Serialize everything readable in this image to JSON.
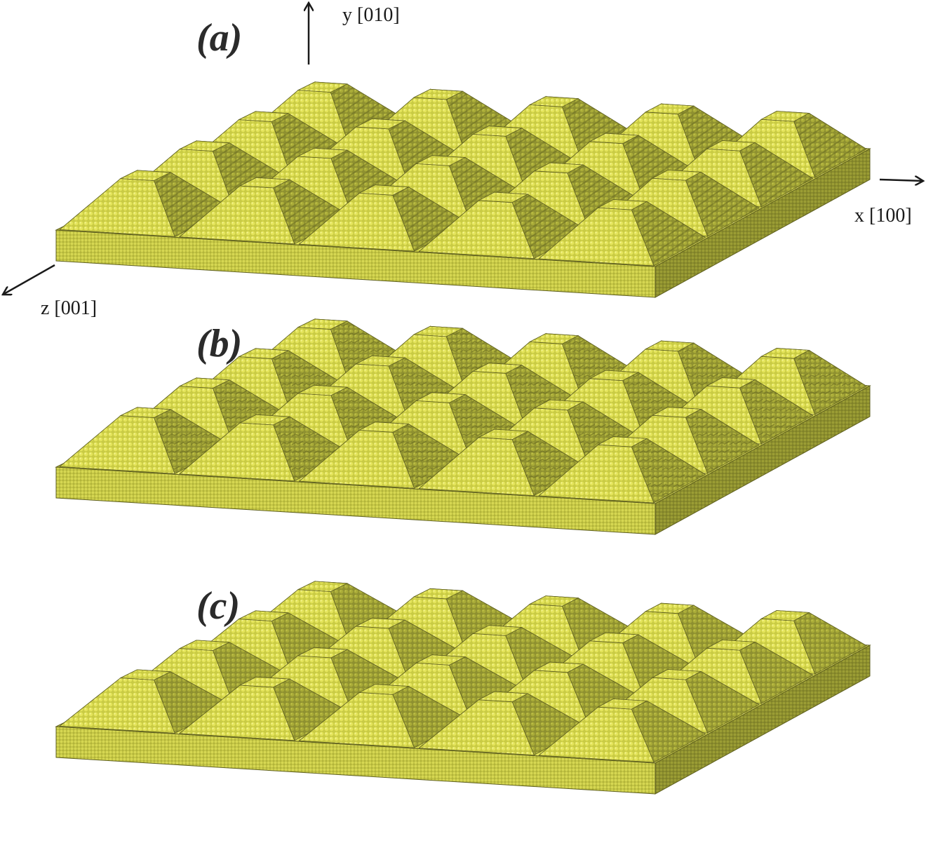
{
  "panels": [
    {
      "label": "(a)",
      "texture": "ridged"
    },
    {
      "label": "(b)",
      "texture": "rough"
    },
    {
      "label": "(c)",
      "texture": "smooth"
    }
  ],
  "pyramid_grid": {
    "columns": 5,
    "rows": 4
  },
  "axes": {
    "y_label": "y [010]",
    "x_label": "x [100]",
    "z_label": "z [001]"
  },
  "colors": {
    "atom_light": "#dede50",
    "atom_mid": "#b9bb3a",
    "slab_front": "#c7c842",
    "slab_side": "#8f9230",
    "shadow": "#6f7124",
    "edge": "#5f6020"
  }
}
